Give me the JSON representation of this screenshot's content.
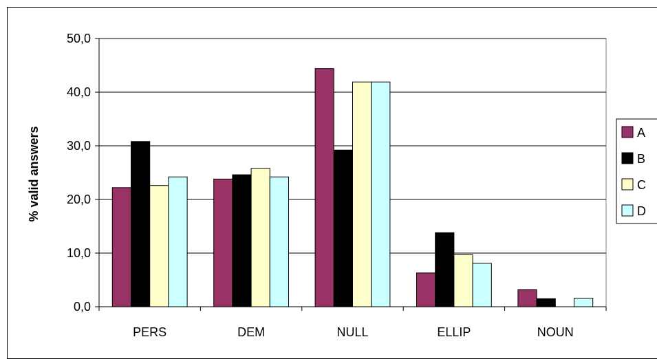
{
  "chart_data": {
    "type": "bar",
    "ylabel": "% valid answers",
    "ylim": [
      0,
      50
    ],
    "yticks": [
      0,
      10,
      20,
      30,
      40,
      50
    ],
    "ytick_labels": [
      "0,0",
      "10,0",
      "20,0",
      "30,0",
      "40,0",
      "50,0"
    ],
    "grid": true,
    "legend_position": "right",
    "categories": [
      "PERS",
      "DEM",
      "NULL",
      "ELLIP",
      "NOUN"
    ],
    "series": [
      {
        "name": "A",
        "color": "#993366",
        "values": [
          22.2,
          23.8,
          44.4,
          6.3,
          3.2
        ]
      },
      {
        "name": "B",
        "color": "#000000",
        "values": [
          30.8,
          24.6,
          29.2,
          13.8,
          1.5
        ]
      },
      {
        "name": "C",
        "color": "#ffffcc",
        "values": [
          22.6,
          25.8,
          41.9,
          9.7,
          0.0
        ]
      },
      {
        "name": "D",
        "color": "#ccffff",
        "values": [
          24.2,
          24.2,
          41.9,
          8.1,
          1.6
        ]
      }
    ]
  }
}
